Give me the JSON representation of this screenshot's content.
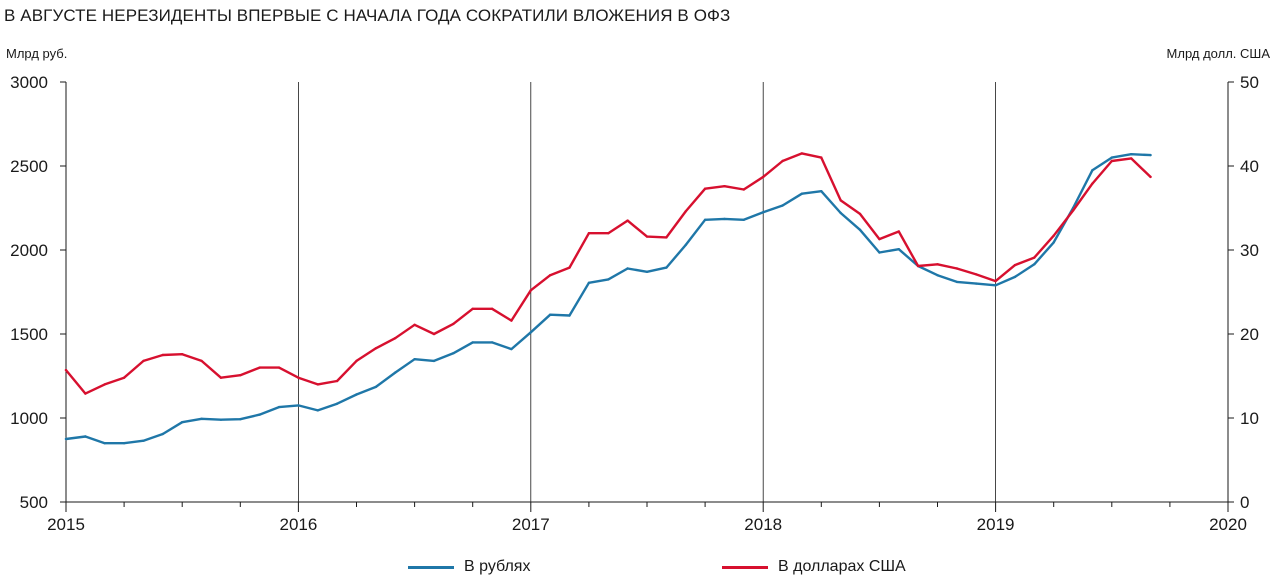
{
  "title": "В АВГУСТЕ НЕРЕЗИДЕНТЫ ВПЕРВЫЕ С НАЧАЛА ГОДА СОКРАТИЛИ ВЛОЖЕНИЯ В ОФЗ",
  "left_unit": "Млрд руб.",
  "right_unit": "Млрд долл. США",
  "colors": {
    "rub": "#1f77a8",
    "usd": "#d7102f",
    "axis": "#1a1a1a",
    "grid": "#1a1a1a"
  },
  "chart_data": {
    "type": "line",
    "title": "В АВГУСТЕ НЕРЕЗИДЕНТЫ ВПЕРВЫЕ С НАЧАЛА ГОДА СОКРАТИЛИ ВЛОЖЕНИЯ В ОФЗ",
    "ylabel": "Млрд руб.",
    "y2label": "Млрд долл. США",
    "xlim": [
      2015,
      2020
    ],
    "ylim": [
      500,
      3000
    ],
    "y2lim": [
      0,
      50
    ],
    "x_ticks": [
      "2015",
      "2016",
      "2017",
      "2018",
      "2019",
      "2020"
    ],
    "y_ticks": [
      "500",
      "1000",
      "1500",
      "2000",
      "2500",
      "3000"
    ],
    "y2_ticks": [
      "0",
      "10",
      "20",
      "30",
      "40",
      "50"
    ],
    "vertical_grid": true,
    "legend_position": "bottom",
    "x": [
      "2015-01",
      "2015-02",
      "2015-03",
      "2015-04",
      "2015-05",
      "2015-06",
      "2015-07",
      "2015-08",
      "2015-09",
      "2015-10",
      "2015-11",
      "2015-12",
      "2016-01",
      "2016-02",
      "2016-03",
      "2016-04",
      "2016-05",
      "2016-06",
      "2016-07",
      "2016-08",
      "2016-09",
      "2016-10",
      "2016-11",
      "2016-12",
      "2017-01",
      "2017-02",
      "2017-03",
      "2017-04",
      "2017-05",
      "2017-06",
      "2017-07",
      "2017-08",
      "2017-09",
      "2017-10",
      "2017-11",
      "2017-12",
      "2018-01",
      "2018-02",
      "2018-03",
      "2018-04",
      "2018-05",
      "2018-06",
      "2018-07",
      "2018-08",
      "2018-09",
      "2018-10",
      "2018-11",
      "2018-12",
      "2019-01",
      "2019-02",
      "2019-03",
      "2019-04",
      "2019-05",
      "2019-06",
      "2019-07",
      "2019-08",
      "2019-09"
    ],
    "series": [
      {
        "name": "В рублях",
        "axis": "left",
        "values": [
          875,
          890,
          850,
          850,
          865,
          905,
          975,
          995,
          990,
          993,
          1020,
          1065,
          1075,
          1045,
          1085,
          1140,
          1185,
          1270,
          1350,
          1340,
          1385,
          1450,
          1450,
          1410,
          1510,
          1615,
          1610,
          1805,
          1825,
          1890,
          1870,
          1895,
          2030,
          2180,
          2185,
          2180,
          2225,
          2265,
          2335,
          2350,
          2220,
          2120,
          1985,
          2005,
          1905,
          1850,
          1810,
          1800,
          1790,
          1840,
          1915,
          2045,
          2250,
          2475,
          2550,
          2570,
          2565
        ]
      },
      {
        "name": "В долларах США",
        "axis": "right",
        "values": [
          15.7,
          12.9,
          14.0,
          14.8,
          16.8,
          17.5,
          17.6,
          16.8,
          14.8,
          15.1,
          16.0,
          16.0,
          14.8,
          14.0,
          14.4,
          16.8,
          18.3,
          19.5,
          21.1,
          20.0,
          21.2,
          23.0,
          23.0,
          21.6,
          25.2,
          27.0,
          27.9,
          32.0,
          32.0,
          33.5,
          31.6,
          31.5,
          34.6,
          37.3,
          37.6,
          37.2,
          38.7,
          40.6,
          41.5,
          41.0,
          35.9,
          34.3,
          31.3,
          32.2,
          28.1,
          28.3,
          27.8,
          27.1,
          26.3,
          28.2,
          29.1,
          31.7,
          34.7,
          37.9,
          40.6,
          40.9,
          38.7
        ]
      }
    ]
  },
  "legend": {
    "rub": "В рублях",
    "usd": "В долларах США"
  }
}
